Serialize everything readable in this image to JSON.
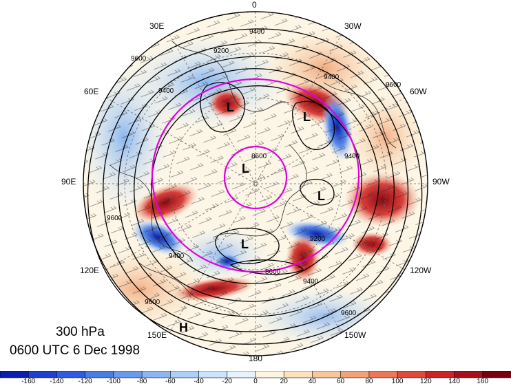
{
  "map": {
    "longitude_labels": [
      "0",
      "30W",
      "60W",
      "90W",
      "120W",
      "150W",
      "180",
      "150E",
      "120E",
      "90E",
      "60E",
      "30E"
    ],
    "level": "300 hPa",
    "time": "0600 UTC 6 Dec 1998",
    "contour_labels": [
      "9400",
      "9200",
      "9600",
      "9400",
      "9600",
      "9400",
      "8600",
      "9600",
      "9400",
      "9200",
      "9600",
      "9400",
      "8600",
      "9600",
      "9400"
    ],
    "pressure_systems": [
      "L",
      "L",
      "L",
      "L",
      "L",
      "H"
    ],
    "colors": {
      "ring": "#e000e0",
      "contour": "#000000",
      "coast": "#2a2a2a"
    }
  },
  "colorbar": {
    "ticks": [
      "-160",
      "-140",
      "-120",
      "-100",
      "-80",
      "-60",
      "-40",
      "-20",
      "0",
      "20",
      "40",
      "60",
      "80",
      "100",
      "120",
      "140",
      "160"
    ],
    "colors": [
      "#0a1fb0",
      "#1f3fd0",
      "#2f5ce0",
      "#4b7de6",
      "#6a9aee",
      "#8cb7f3",
      "#acd0f8",
      "#cae4fb",
      "#e6f3fd",
      "#fdf5e0",
      "#fbe2bd",
      "#f7c69a",
      "#f2a276",
      "#ec7856",
      "#e04a3a",
      "#cc2327",
      "#a80f1a",
      "#7a0010"
    ]
  }
}
